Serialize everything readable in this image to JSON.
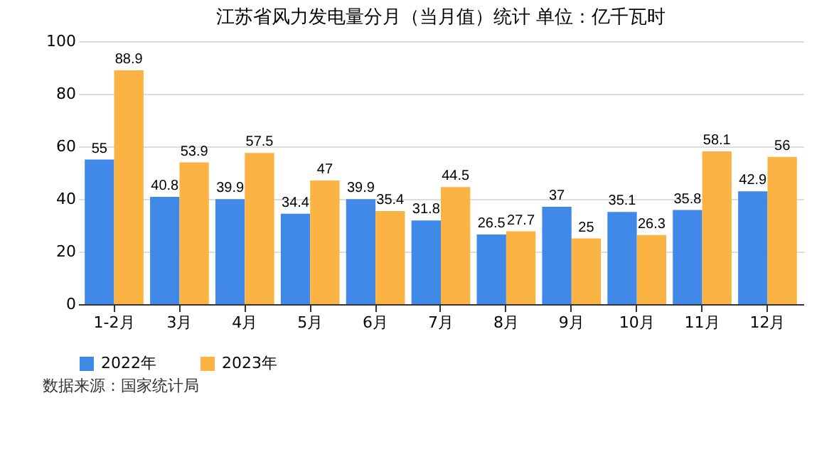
{
  "chart_data": {
    "type": "bar",
    "title": "江苏省风力发电量分月（当月值）统计 单位：亿千瓦时",
    "categories": [
      "1-2月",
      "3月",
      "4月",
      "5月",
      "6月",
      "7月",
      "8月",
      "9月",
      "10月",
      "11月",
      "12月"
    ],
    "series": [
      {
        "name": "2022年",
        "color": "#4189e8",
        "values": [
          55,
          40.8,
          39.9,
          34.4,
          39.9,
          31.8,
          26.5,
          37,
          35.1,
          35.8,
          42.9
        ]
      },
      {
        "name": "2023年",
        "color": "#fbb444",
        "values": [
          88.9,
          53.9,
          57.5,
          47,
          35.4,
          44.5,
          27.7,
          25,
          26.3,
          58.1,
          56
        ]
      }
    ],
    "ylim": [
      0,
      100
    ],
    "yticks": [
      0,
      20,
      40,
      60,
      80,
      100
    ],
    "grid": "y",
    "legend": "bottom",
    "data_labels": true,
    "annotations": [
      "数据来源：国家统计局"
    ]
  }
}
